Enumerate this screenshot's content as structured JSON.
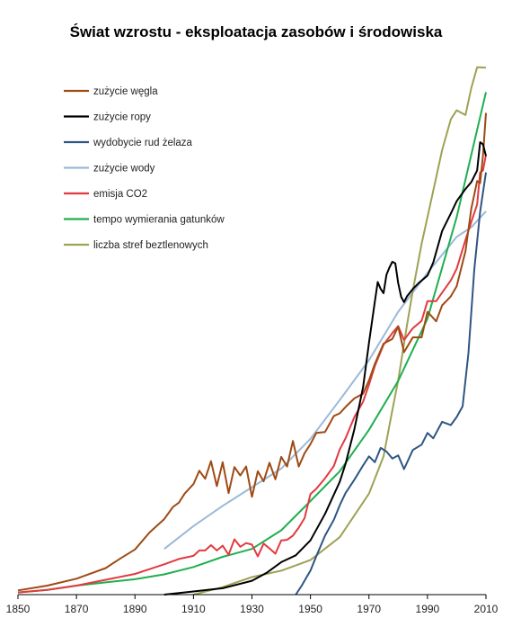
{
  "chart_data": {
    "type": "line",
    "title": "Świat wzrostu - eksploatacja zasobów i środowiska",
    "xlabel": "",
    "ylabel": "",
    "xlim": [
      1850,
      2010
    ],
    "ylim": [
      0,
      100
    ],
    "x_ticks": [
      1850,
      1870,
      1890,
      1910,
      1930,
      1950,
      1970,
      1990,
      2010
    ],
    "y_axis_labels": "none",
    "grid": false,
    "legend_position": "top-left",
    "series": [
      {
        "name": "zużycie węgla",
        "color": "#9e4a14",
        "x": [
          1850,
          1860,
          1870,
          1880,
          1885,
          1890,
          1895,
          1900,
          1903,
          1905,
          1907,
          1910,
          1912,
          1914,
          1916,
          1918,
          1920,
          1922,
          1924,
          1926,
          1928,
          1930,
          1932,
          1934,
          1936,
          1938,
          1940,
          1942,
          1944,
          1946,
          1948,
          1950,
          1952,
          1955,
          1958,
          1960,
          1962,
          1965,
          1968,
          1970,
          1972,
          1975,
          1978,
          1980,
          1982,
          1985,
          1988,
          1990,
          1993,
          1995,
          1998,
          2000,
          2003,
          2005,
          2007,
          2008,
          2009,
          2010
        ],
        "y": [
          0.8,
          1.7,
          3,
          5,
          6.8,
          8.5,
          11.7,
          14.2,
          16.5,
          17.3,
          19,
          20.8,
          23.3,
          21.8,
          25.1,
          20.4,
          24.9,
          19.1,
          24,
          22.4,
          24.1,
          18.4,
          23.2,
          21.3,
          24.8,
          21.7,
          25.9,
          24.1,
          28.9,
          24.1,
          26.6,
          28.3,
          30.4,
          30.6,
          33.6,
          34.1,
          35.3,
          36.9,
          37.8,
          40.3,
          43.4,
          47.2,
          48.1,
          50.4,
          45.6,
          48.4,
          48.4,
          53.2,
          51.4,
          54.4,
          56.1,
          58,
          64.6,
          72.6,
          77.8,
          77.4,
          82.6,
          90.6
        ]
      },
      {
        "name": "zużycie ropy",
        "color": "#000000",
        "x": [
          1900,
          1910,
          1920,
          1930,
          1935,
          1940,
          1945,
          1950,
          1955,
          1960,
          1962,
          1965,
          1968,
          1970,
          1972,
          1973,
          1974,
          1975,
          1976,
          1977,
          1978,
          1979,
          1980,
          1981,
          1982,
          1983,
          1985,
          1987,
          1990,
          1992,
          1995,
          1998,
          2000,
          2003,
          2005,
          2007,
          2008,
          2009,
          2010
        ],
        "y": [
          0,
          0.6,
          1.2,
          2.6,
          4.1,
          6.1,
          7.4,
          10.2,
          15.2,
          21.2,
          24.6,
          31.1,
          39,
          47.4,
          55.1,
          58.8,
          57.5,
          56.7,
          60.2,
          61.5,
          62.6,
          62.3,
          58.6,
          56,
          55,
          56.1,
          57.5,
          58.6,
          60,
          62.5,
          68.4,
          71.7,
          74,
          76.3,
          77.6,
          79.8,
          85.1,
          84.7,
          82.5
        ]
      },
      {
        "name": "wydobycie rud żelaza",
        "color": "#2e5582",
        "x": [
          1945,
          1947,
          1949,
          1950,
          1952,
          1955,
          1958,
          1960,
          1962,
          1965,
          1968,
          1970,
          1972,
          1974,
          1976,
          1978,
          1980,
          1982,
          1985,
          1988,
          1990,
          1992,
          1995,
          1998,
          2000,
          2002,
          2004,
          2006,
          2008,
          2010
        ],
        "y": [
          0,
          1.7,
          3.6,
          4.5,
          7.2,
          11.1,
          14.1,
          16.8,
          19.1,
          21.6,
          24.3,
          26,
          24.9,
          27.6,
          26.9,
          25.6,
          26.2,
          23.6,
          27.2,
          28.2,
          30.4,
          29.4,
          32.5,
          31.9,
          33.4,
          35.4,
          45.4,
          61.1,
          72,
          79.4
        ]
      },
      {
        "name": "zużycie wody",
        "color": "#9bb9d8",
        "x": [
          1900,
          1910,
          1920,
          1930,
          1940,
          1950,
          1960,
          1970,
          1980,
          1990,
          2000,
          2005,
          2010
        ],
        "y": [
          8.6,
          12.9,
          16.7,
          20.2,
          23.7,
          29.3,
          36.6,
          44.1,
          53.2,
          60.5,
          67.3,
          69.1,
          72.1
        ]
      },
      {
        "name": "emisja CO2",
        "color": "#e23a40",
        "x": [
          1850,
          1860,
          1870,
          1880,
          1890,
          1900,
          1905,
          1910,
          1912,
          1914,
          1916,
          1918,
          1920,
          1922,
          1924,
          1926,
          1928,
          1930,
          1932,
          1934,
          1936,
          1938,
          1940,
          1942,
          1944,
          1946,
          1948,
          1950,
          1952,
          1955,
          1958,
          1960,
          1962,
          1965,
          1968,
          1970,
          1972,
          1975,
          1978,
          1980,
          1982,
          1985,
          1988,
          1990,
          1993,
          1995,
          1998,
          2000,
          2003,
          2005,
          2007,
          2008,
          2009,
          2010
        ],
        "y": [
          0.4,
          0.9,
          1.7,
          2.8,
          3.9,
          5.7,
          6.7,
          7.3,
          8.3,
          8.3,
          9.3,
          8.3,
          9.2,
          7.5,
          10.4,
          9,
          9.7,
          9.4,
          7.2,
          9.6,
          8.7,
          7.7,
          10.2,
          10.3,
          11.1,
          12.6,
          14.4,
          18.9,
          19.9,
          21.9,
          24.2,
          27.3,
          29.4,
          33.4,
          36.3,
          39.5,
          43,
          47,
          49.2,
          50.5,
          47.9,
          50.1,
          51.5,
          55.2,
          55.2,
          56.8,
          59.1,
          61.3,
          66.7,
          70.1,
          73.4,
          79.4,
          79.8,
          82.7
        ]
      },
      {
        "name": "tempo wymierania gatunków",
        "color": "#1faf50",
        "x": [
          1850,
          1860,
          1870,
          1880,
          1890,
          1900,
          1910,
          1920,
          1930,
          1940,
          1950,
          1960,
          1970,
          1980,
          1990,
          2000,
          2010
        ],
        "y": [
          0.4,
          0.9,
          1.7,
          2.3,
          2.9,
          3.8,
          5.2,
          7.1,
          8.6,
          12.1,
          17.6,
          23.2,
          31,
          40.2,
          51.9,
          71,
          94.5
        ]
      },
      {
        "name": "liczba stref beztlenowych",
        "color": "#9ea255",
        "x": [
          1910,
          1920,
          1930,
          1940,
          1950,
          1960,
          1970,
          1975,
          1978,
          1980,
          1983,
          1985,
          1988,
          1990,
          1993,
          1995,
          1998,
          2000,
          2003,
          2005,
          2007,
          2010
        ],
        "y": [
          0,
          1.4,
          3.3,
          4.5,
          6.5,
          10.8,
          19,
          26,
          34.7,
          40.3,
          50.7,
          57.2,
          66,
          71,
          78.5,
          83.6,
          89.4,
          91.1,
          90.2,
          95.3,
          99.2,
          99.1
        ]
      }
    ]
  }
}
